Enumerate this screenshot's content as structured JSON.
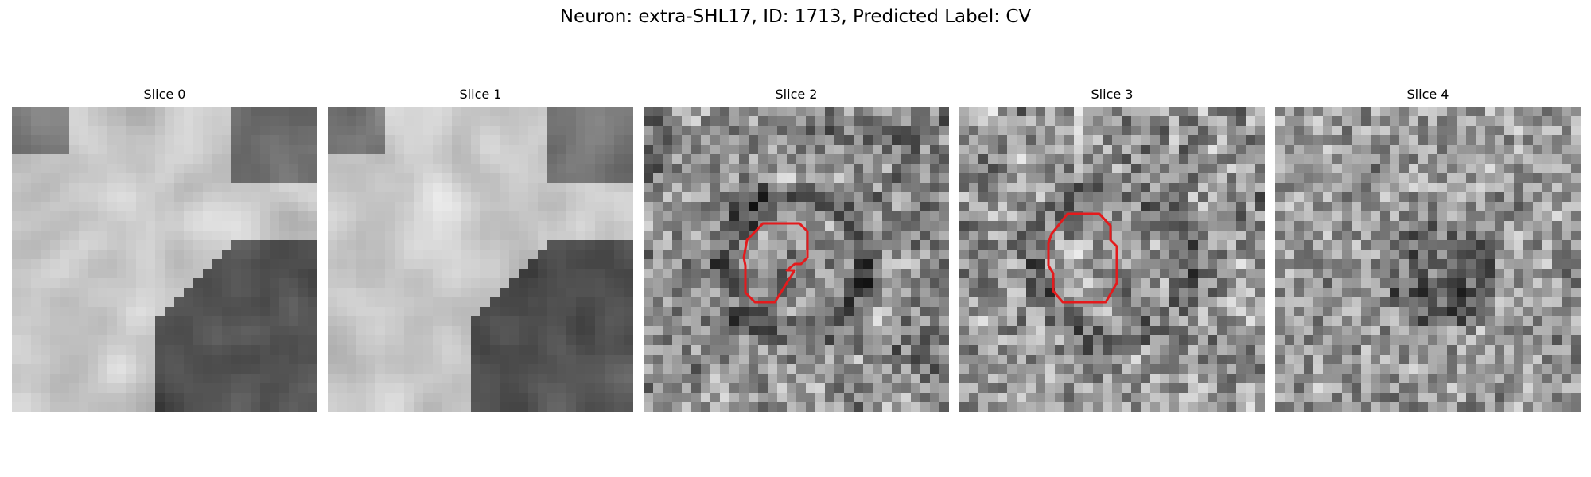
{
  "figure": {
    "title": "Neuron: extra-SHL17, ID: 1713, Predicted Label: CV"
  },
  "panels": [
    {
      "title": "Slice 0"
    },
    {
      "title": "Slice 1"
    },
    {
      "title": "Slice 2"
    },
    {
      "title": "Slice 3"
    },
    {
      "title": "Slice 4"
    }
  ],
  "colors": {
    "contour": "#e41a1c",
    "background": "#ffffff"
  }
}
